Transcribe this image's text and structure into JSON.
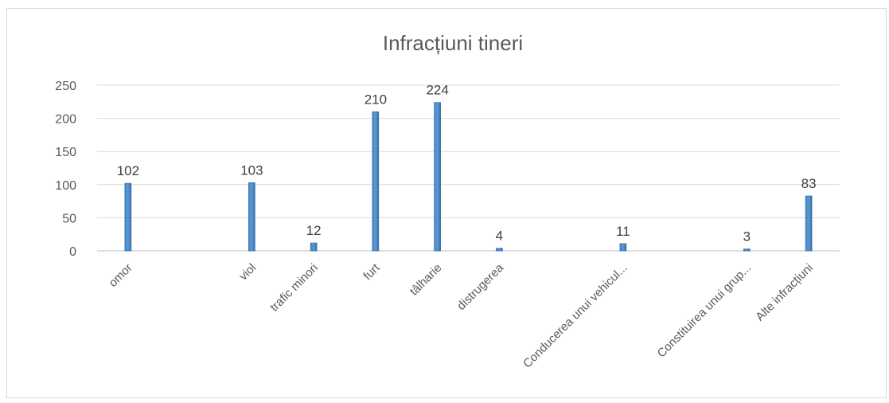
{
  "chart_data": {
    "type": "bar",
    "title": "Infracțiuni tineri",
    "xlabel": "",
    "ylabel": "",
    "ylim": [
      0,
      250
    ],
    "yticks": [
      0,
      50,
      100,
      150,
      200,
      250
    ],
    "grid": true,
    "legend": "none",
    "categories": [
      "omor",
      "viol",
      "trafic minori",
      "furt",
      "tâlharie",
      "distrugerea",
      "Conducerea unui vehicul...",
      "Constituirea unui grup...",
      "Alte infracțiuni"
    ],
    "x": [
      1,
      3,
      4,
      5,
      6,
      7,
      9,
      11,
      12
    ],
    "values": [
      102,
      103,
      12,
      210,
      224,
      4,
      11,
      3,
      83
    ],
    "bar_color": "#5b9bd5"
  }
}
